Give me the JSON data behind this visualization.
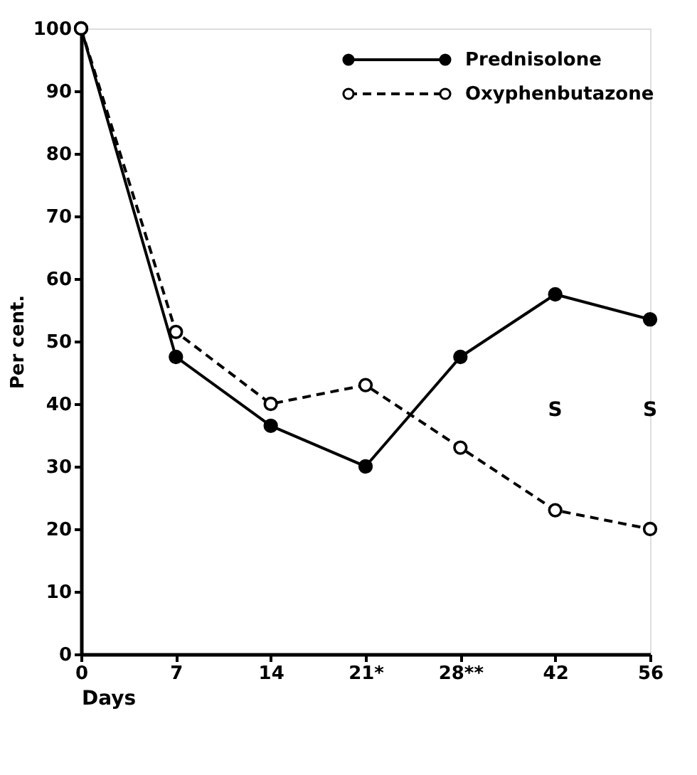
{
  "chart_data": {
    "type": "line",
    "xlabel": "Days",
    "ylabel": "Per cent.",
    "categories": [
      "0",
      "7",
      "14",
      "21*",
      "28**",
      "42",
      "56"
    ],
    "series": [
      {
        "name": "Prednisolone",
        "color": "#000000",
        "line_style": "solid",
        "values": [
          100,
          47.5,
          36.5,
          30,
          47.5,
          57.5,
          53.5
        ]
      },
      {
        "name": "Oxyphenbutazone",
        "color": "#000000",
        "line_style": "dashed",
        "values": [
          100,
          51.5,
          40,
          43,
          33,
          23,
          20
        ]
      }
    ],
    "ylim": [
      0,
      100
    ],
    "yticks": [
      0,
      10,
      20,
      30,
      40,
      50,
      60,
      70,
      80,
      90,
      100
    ],
    "marker": "circle",
    "grid": false,
    "legend": "top right",
    "annotations": [
      "S",
      "S"
    ]
  }
}
